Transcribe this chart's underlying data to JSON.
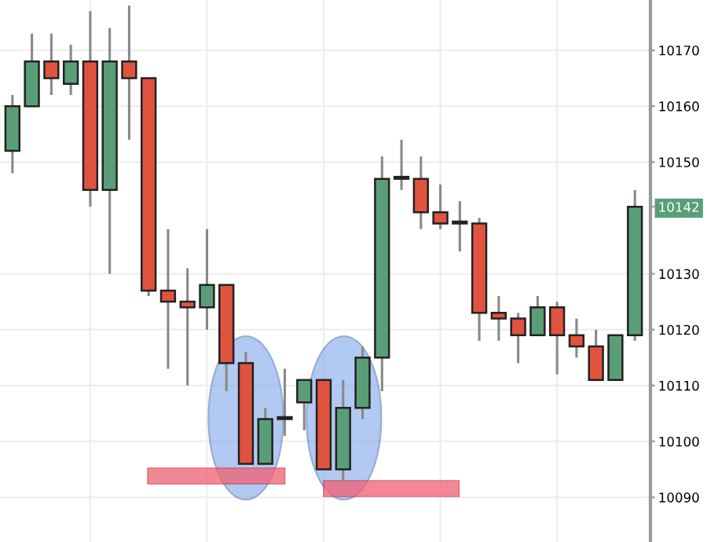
{
  "chart_data": {
    "type": "candlestick",
    "categories": [
      null,
      null,
      null,
      null,
      null,
      null,
      null,
      null,
      null,
      null,
      null,
      null,
      null,
      null,
      null,
      null,
      null,
      null,
      null,
      null,
      null,
      null,
      null,
      null,
      null,
      null,
      null,
      null,
      null,
      null,
      null,
      null,
      null
    ],
    "ohlc": [
      [
        10152,
        10162,
        10148,
        10160
      ],
      [
        10160,
        10173,
        10160,
        10168
      ],
      [
        10168,
        10173,
        10162,
        10165
      ],
      [
        10164,
        10171,
        10162,
        10168
      ],
      [
        10168,
        10177,
        10142,
        10145
      ],
      [
        10145,
        10174,
        10130,
        10168
      ],
      [
        10168,
        10178,
        10154,
        10165
      ],
      [
        10165,
        10165,
        10126,
        10127
      ],
      [
        10127,
        10138,
        10113,
        10125
      ],
      [
        10125,
        10131,
        10110,
        10124
      ],
      [
        10124,
        10138,
        10120,
        10128
      ],
      [
        10128,
        10128,
        10109,
        10114
      ],
      [
        10114,
        10116,
        10096,
        10096
      ],
      [
        10096,
        10106,
        10096,
        10104
      ],
      [
        10104,
        10113,
        10101,
        10104
      ],
      [
        10107,
        10111,
        10102,
        10111
      ],
      [
        10111,
        10111,
        10095,
        10095
      ],
      [
        10095,
        10111,
        10093,
        10106
      ],
      [
        10106,
        10117,
        10104,
        10115
      ],
      [
        10115,
        10151,
        10109,
        10147
      ],
      [
        10147,
        10154,
        10145,
        10147
      ],
      [
        10147,
        10151,
        10138,
        10141
      ],
      [
        10141,
        10146,
        10138,
        10139
      ],
      [
        10139,
        10143,
        10134,
        10139
      ],
      [
        10139,
        10140,
        10118,
        10123
      ],
      [
        10123,
        10126,
        10118,
        10122
      ],
      [
        10122,
        10123,
        10114,
        10119
      ],
      [
        10119,
        10126,
        10119,
        10124
      ],
      [
        10124,
        10125,
        10112,
        10119
      ],
      [
        10119,
        10122,
        10115,
        10117
      ],
      [
        10117,
        10120,
        10111,
        10111
      ],
      [
        10111,
        10119,
        10111,
        10119
      ],
      [
        10119,
        10145,
        10118,
        10142
      ]
    ],
    "colors": [
      "#5a9e78",
      "#5a9e78",
      "#e0533f",
      "#5a9e78",
      "#e0533f",
      "#5a9e78",
      "#e0533f",
      "#e0533f",
      "#e0533f",
      "#e0533f",
      "#5a9e78",
      "#e0533f",
      "#e0533f",
      "#5a9e78",
      "#777777",
      "#5a9e78",
      "#e0533f",
      "#5a9e78",
      "#5a9e78",
      "#5a9e78",
      "#777777",
      "#e0533f",
      "#e0533f",
      "#e0533f",
      "#e0533f",
      "#e0533f",
      "#e0533f",
      "#5a9e78",
      "#e0533f",
      "#e0533f",
      "#e0533f",
      "#5a9e78",
      "#5a9e78"
    ],
    "ylim": [
      10082,
      10179
    ],
    "yticks": [
      10090,
      10100,
      10110,
      10120,
      10130,
      {
        "value": 10142,
        "label": "10142"
      },
      10150,
      10160,
      10170
    ],
    "grid": true
  }
}
